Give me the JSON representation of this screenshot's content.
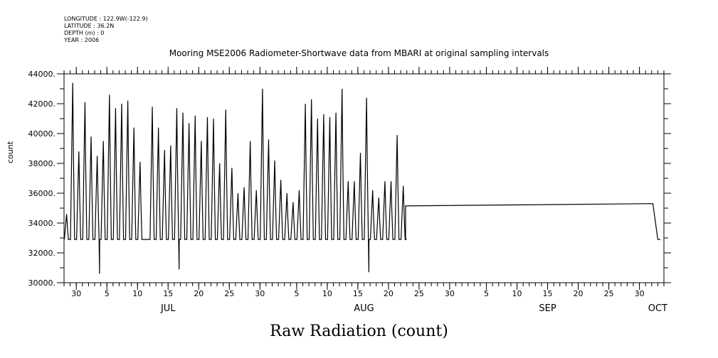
{
  "meta": {
    "longitude": "LONGITUDE : 122.9W(-122.9)",
    "latitude": "LATITUDE : 36.2N",
    "depth": "DEPTH (m) : 0",
    "year": "YEAR : 2006"
  },
  "chart_data": {
    "type": "line",
    "title": "Mooring MSE2006 Radiometer-Shortwave data from MBARI at original sampling intervals",
    "xlabel": "Raw Radiation (count)",
    "ylabel": "count",
    "ylim": [
      30000,
      44000
    ],
    "yticks": [
      "30000.",
      "32000.",
      "34000.",
      "36000.",
      "38000.",
      "40000.",
      "42000.",
      "44000."
    ],
    "xrange": [
      "2006-06-28",
      "2006-10-04"
    ],
    "day_ticks": [
      {
        "date": "2006-06-30",
        "label": "30"
      },
      {
        "date": "2006-07-05",
        "label": "5"
      },
      {
        "date": "2006-07-10",
        "label": "10"
      },
      {
        "date": "2006-07-15",
        "label": "15"
      },
      {
        "date": "2006-07-20",
        "label": "20"
      },
      {
        "date": "2006-07-25",
        "label": "25"
      },
      {
        "date": "2006-07-30",
        "label": "30"
      },
      {
        "date": "2006-08-05",
        "label": "5"
      },
      {
        "date": "2006-08-10",
        "label": "10"
      },
      {
        "date": "2006-08-15",
        "label": "15"
      },
      {
        "date": "2006-08-20",
        "label": "20"
      },
      {
        "date": "2006-08-25",
        "label": "25"
      },
      {
        "date": "2006-08-30",
        "label": "30"
      },
      {
        "date": "2006-09-05",
        "label": "5"
      },
      {
        "date": "2006-09-10",
        "label": "10"
      },
      {
        "date": "2006-09-15",
        "label": "15"
      },
      {
        "date": "2006-09-20",
        "label": "20"
      },
      {
        "date": "2006-09-25",
        "label": "25"
      },
      {
        "date": "2006-09-30",
        "label": "30"
      }
    ],
    "month_labels": [
      {
        "date": "2006-07-15",
        "label": "JUL"
      },
      {
        "date": "2006-08-16",
        "label": "AUG"
      },
      {
        "date": "2006-09-15",
        "label": "SEP"
      },
      {
        "date": "2006-10-03",
        "label": "OCT"
      }
    ],
    "night_baseline": 32900,
    "daily_peaks": [
      {
        "date": "2006-06-28",
        "peak": 34600
      },
      {
        "date": "2006-06-29",
        "peak": 43400
      },
      {
        "date": "2006-06-30",
        "peak": 38800
      },
      {
        "date": "2006-07-01",
        "peak": 42100
      },
      {
        "date": "2006-07-02",
        "peak": 39800
      },
      {
        "date": "2006-07-03",
        "peak": 38500
      },
      {
        "date": "2006-07-04",
        "peak": 39500
      },
      {
        "date": "2006-07-05",
        "peak": 42600
      },
      {
        "date": "2006-07-06",
        "peak": 41700
      },
      {
        "date": "2006-07-07",
        "peak": 42000
      },
      {
        "date": "2006-07-08",
        "peak": 42200
      },
      {
        "date": "2006-07-09",
        "peak": 40400
      },
      {
        "date": "2006-07-10",
        "peak": 38100
      },
      {
        "date": "2006-07-12",
        "peak": 41800
      },
      {
        "date": "2006-07-13",
        "peak": 40400
      },
      {
        "date": "2006-07-14",
        "peak": 38900
      },
      {
        "date": "2006-07-15",
        "peak": 39200
      },
      {
        "date": "2006-07-16",
        "peak": 41700
      },
      {
        "date": "2006-07-17",
        "peak": 41400
      },
      {
        "date": "2006-07-18",
        "peak": 40700
      },
      {
        "date": "2006-07-19",
        "peak": 41200
      },
      {
        "date": "2006-07-20",
        "peak": 39500
      },
      {
        "date": "2006-07-21",
        "peak": 41100
      },
      {
        "date": "2006-07-22",
        "peak": 41000
      },
      {
        "date": "2006-07-23",
        "peak": 38000
      },
      {
        "date": "2006-07-24",
        "peak": 41600
      },
      {
        "date": "2006-07-25",
        "peak": 37700
      },
      {
        "date": "2006-07-26",
        "peak": 36000
      },
      {
        "date": "2006-07-27",
        "peak": 36400
      },
      {
        "date": "2006-07-28",
        "peak": 39500
      },
      {
        "date": "2006-07-29",
        "peak": 36200
      },
      {
        "date": "2006-07-30",
        "peak": 43000
      },
      {
        "date": "2006-07-31",
        "peak": 39600
      },
      {
        "date": "2006-08-01",
        "peak": 38200
      },
      {
        "date": "2006-08-02",
        "peak": 36900
      },
      {
        "date": "2006-08-03",
        "peak": 36000
      },
      {
        "date": "2006-08-04",
        "peak": 35400
      },
      {
        "date": "2006-08-05",
        "peak": 36200
      },
      {
        "date": "2006-08-06",
        "peak": 42000
      },
      {
        "date": "2006-08-07",
        "peak": 42300
      },
      {
        "date": "2006-08-08",
        "peak": 41000
      },
      {
        "date": "2006-08-09",
        "peak": 41300
      },
      {
        "date": "2006-08-10",
        "peak": 41100
      },
      {
        "date": "2006-08-11",
        "peak": 41400
      },
      {
        "date": "2006-08-12",
        "peak": 43000
      },
      {
        "date": "2006-08-13",
        "peak": 36800
      },
      {
        "date": "2006-08-14",
        "peak": 36800
      },
      {
        "date": "2006-08-15",
        "peak": 38700
      },
      {
        "date": "2006-08-16",
        "peak": 42400
      },
      {
        "date": "2006-08-17",
        "peak": 36200
      },
      {
        "date": "2006-08-18",
        "peak": 35700
      },
      {
        "date": "2006-08-19",
        "peak": 36800
      },
      {
        "date": "2006-08-20",
        "peak": 36800
      },
      {
        "date": "2006-08-21",
        "peak": 39900
      },
      {
        "date": "2006-08-22",
        "peak": 36500
      }
    ],
    "dips": [
      {
        "date": "2006-07-03",
        "value": 30600
      },
      {
        "date": "2006-07-16",
        "value": 30900
      },
      {
        "date": "2006-08-16",
        "value": 30700
      }
    ],
    "gap_from": "2006-07-10",
    "gap_to": "2006-07-12",
    "flat_segment": [
      {
        "date": "2006-08-23",
        "value": 35150
      },
      {
        "date": "2006-10-02",
        "value": 35300
      },
      {
        "date": "2006-10-03",
        "value": 32900
      }
    ]
  }
}
